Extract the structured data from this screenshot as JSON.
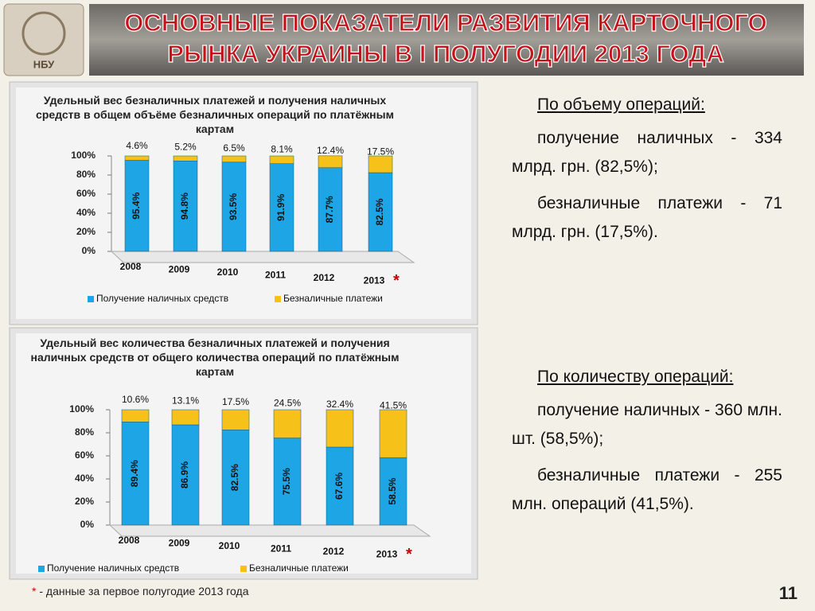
{
  "slide": {
    "title_lines": [
      "ОСНОВНЫЕ ПОКАЗАТЕЛИ РАЗВИТИЯ КАРТОЧНОГО",
      "РЫНКА УКРАИНЫ В I ПОЛУГОДИИ 2013 ГОДА"
    ],
    "logo_text": "НБУ",
    "blocks": [
      {
        "heading": "По объему операций:",
        "paragraphs": [
          "получение наличных - 334 млрд. грн. (82,5%);",
          "безналичные платежи - 71 млрд. грн. (17,5%)."
        ]
      },
      {
        "heading": "По количеству операций:",
        "paragraphs": [
          "получение наличных - 360 млн. шт. (58,5%);",
          "безналичные платежи - 255 млн. операций (41,5%)."
        ]
      }
    ],
    "footnote_mark": "*",
    "footnote": "- данные за первое полугодие 2013 года",
    "page_number": "11"
  },
  "chart_data": [
    {
      "type": "stacked_bar",
      "title": "Удельный вес безналичных платежей и получения наличных средств в общем объёме безналичных операций по платёжным картам",
      "categories": [
        "2008",
        "2009",
        "2010",
        "2011",
        "2012",
        "2013"
      ],
      "annotation": "*",
      "series": [
        {
          "name": "Получение наличных средств",
          "color": "#1ea5e6",
          "values": [
            95.4,
            94.8,
            93.5,
            91.9,
            87.7,
            82.5
          ],
          "value_labels": [
            "95.4%",
            "94.8%",
            "93.5%",
            "91.9%",
            "87.7%",
            "82.5%"
          ]
        },
        {
          "name": "Безналичные платежи",
          "color": "#f6c21a",
          "values": [
            4.6,
            5.2,
            6.5,
            8.1,
            12.4,
            17.5
          ],
          "value_labels": [
            "4.6%",
            "5.2%",
            "6.5%",
            "8.1%",
            "12.4%",
            "17.5%"
          ]
        }
      ],
      "ylim": [
        0,
        100
      ],
      "yticks": [
        {
          "value": 0,
          "label": "0%"
        },
        {
          "value": 20,
          "label": "20%"
        },
        {
          "value": 40,
          "label": "40%"
        },
        {
          "value": 60,
          "label": "60%"
        },
        {
          "value": 80,
          "label": "80%"
        },
        {
          "value": 100,
          "label": "100%"
        }
      ]
    },
    {
      "type": "stacked_bar",
      "title": "Удельный вес количества безналичных платежей и получения наличных средств от общего количества операций по платёжным картам",
      "categories": [
        "2008",
        "2009",
        "2010",
        "2011",
        "2012",
        "2013"
      ],
      "annotation": "*",
      "series": [
        {
          "name": "Получение наличных средств",
          "color": "#1ea5e6",
          "values": [
            89.4,
            86.9,
            82.5,
            75.5,
            67.6,
            58.5
          ],
          "value_labels": [
            "89.4%",
            "86.9%",
            "82.5%",
            "75.5%",
            "67.6%",
            "58.5%"
          ]
        },
        {
          "name": "Безналичные платежи",
          "color": "#f6c21a",
          "values": [
            10.6,
            13.1,
            17.5,
            24.5,
            32.4,
            41.5
          ],
          "value_labels": [
            "10.6%",
            "13.1%",
            "17.5%",
            "24.5%",
            "32.4%",
            "41.5%"
          ]
        }
      ],
      "ylim": [
        0,
        100
      ],
      "yticks": [
        {
          "value": 0,
          "label": "0%"
        },
        {
          "value": 20,
          "label": "20%"
        },
        {
          "value": 40,
          "label": "40%"
        },
        {
          "value": 60,
          "label": "60%"
        },
        {
          "value": 80,
          "label": "80%"
        },
        {
          "value": 100,
          "label": "100%"
        }
      ]
    }
  ]
}
